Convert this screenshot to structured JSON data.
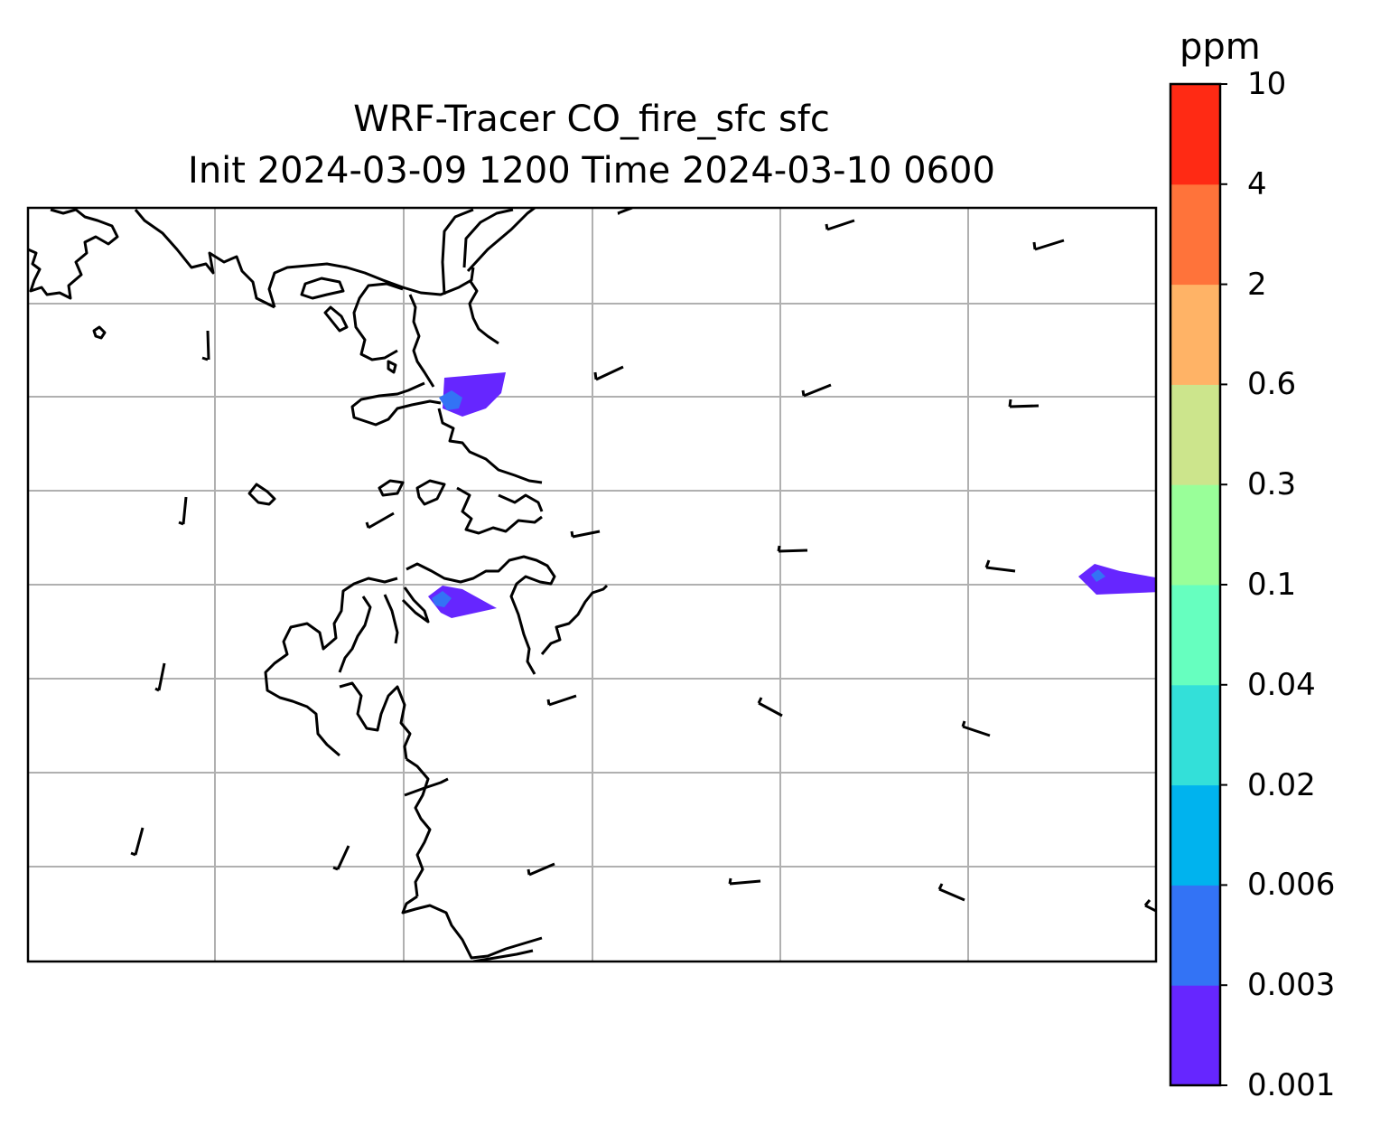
{
  "title": "WRF-Tracer CO_fire_sfc sfc",
  "subtitle": "Init 2024-03-09 1200 Time 2024-03-10 0600",
  "colorbar": {
    "unit": "ppm",
    "levels": [
      "0.001",
      "0.003",
      "0.006",
      "0.02",
      "0.04",
      "0.1",
      "0.3",
      "0.6",
      "2",
      "4",
      "10"
    ],
    "colors": [
      "#6626ff",
      "#3373f5",
      "#00b3ee",
      "#33e0d9",
      "#66ffbf",
      "#99ff99",
      "#cce58c",
      "#ffb366",
      "#ff733a",
      "#ff2a14"
    ]
  },
  "map": {
    "gridlines": true,
    "coastline_color": "#000000",
    "grid_color": "#b0b0b0"
  }
}
